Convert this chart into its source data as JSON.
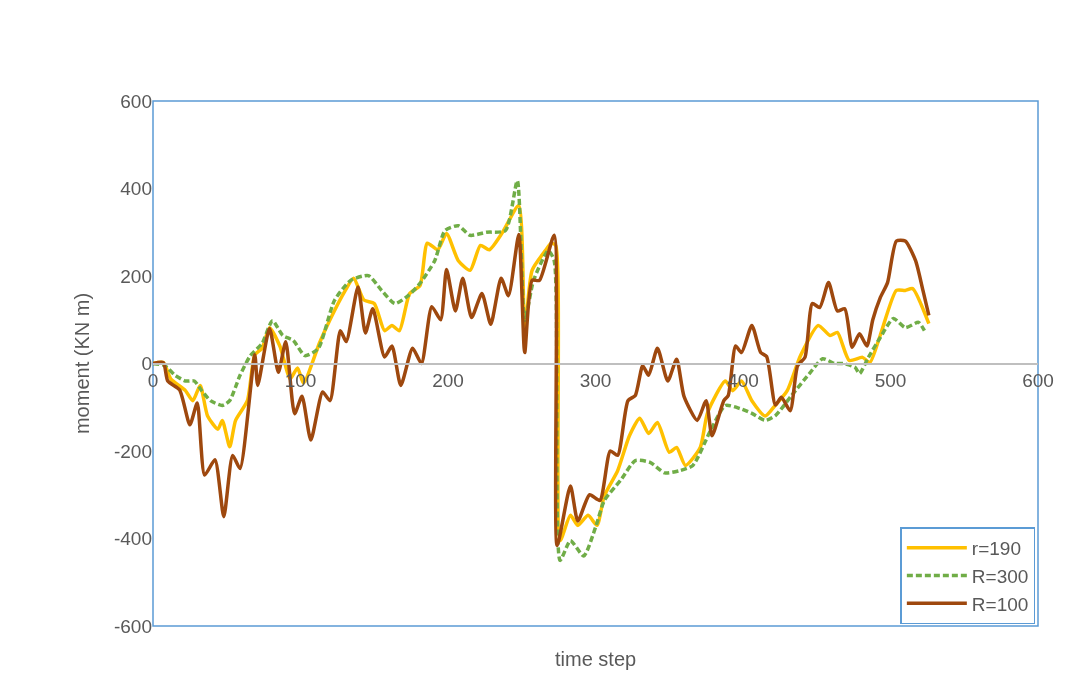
{
  "chart_data": {
    "type": "line",
    "xlabel": "time step",
    "ylabel": "moment (KN m)",
    "xlim": [
      0,
      600
    ],
    "xticks": [
      0,
      100,
      200,
      300,
      400,
      500,
      600
    ],
    "ylim": [
      -600,
      600
    ],
    "yticks": [
      -600,
      -400,
      -200,
      0,
      200,
      400,
      600
    ],
    "grid": false,
    "legend": "bottom right",
    "marker": "none",
    "series": [
      {
        "name": "r=190",
        "color": "#ffc000",
        "line_style": "solid",
        "x": [
          0,
          7,
          12,
          22,
          27,
          32,
          37,
          44,
          47,
          52,
          56,
          64,
          69,
          74,
          79,
          86,
          93,
          98,
          102,
          113,
          120,
          130,
          136,
          143,
          150,
          157,
          162,
          167,
          174,
          181,
          186,
          193,
          199,
          207,
          215,
          222,
          228,
          237,
          248,
          252,
          257,
          266,
          270,
          273,
          276,
          283,
          288,
          295,
          301,
          306,
          315,
          323,
          330,
          336,
          342,
          350,
          355,
          361,
          371,
          376,
          388,
          393,
          399,
          406,
          415,
          422,
          430,
          439,
          451,
          459,
          464,
          472,
          481,
          486,
          493,
          504,
          510,
          515,
          526
        ],
        "values": [
          0,
          2,
          -35,
          -62,
          -85,
          -50,
          -120,
          -150,
          -130,
          -190,
          -130,
          -85,
          20,
          35,
          82,
          40,
          -35,
          -10,
          -45,
          48,
          100,
          165,
          195,
          145,
          137,
          75,
          87,
          75,
          160,
          178,
          275,
          260,
          297,
          235,
          213,
          270,
          260,
          300,
          361,
          75,
          213,
          258,
          275,
          270,
          -405,
          -347,
          -370,
          -347,
          -370,
          -302,
          -245,
          -165,
          -125,
          -160,
          -135,
          -203,
          -192,
          -233,
          -192,
          -112,
          -40,
          -62,
          -40,
          -85,
          -120,
          -95,
          -62,
          18,
          87,
          64,
          71,
          7,
          14,
          2,
          64,
          167,
          167,
          171,
          91
        ]
      },
      {
        "name": "R=300",
        "color": "#70ad47",
        "line_style": "dashed",
        "x": [
          0,
          8,
          15,
          22,
          28,
          33,
          39,
          47,
          52,
          59,
          66,
          74,
          81,
          88,
          95,
          103,
          112,
          123,
          134,
          146,
          155,
          164,
          173,
          181,
          191,
          198,
          207,
          215,
          226,
          239,
          247,
          252,
          258,
          268,
          272,
          276,
          283,
          292,
          300,
          306,
          317,
          327,
          337,
          347,
          357,
          366,
          378,
          388,
          398,
          406,
          415,
          422,
          433,
          445,
          454,
          462,
          468,
          476,
          479,
          485,
          493,
          502,
          510,
          519,
          523
        ],
        "values": [
          0,
          -5,
          -27,
          -40,
          -40,
          -62,
          -85,
          -96,
          -85,
          -27,
          18,
          46,
          98,
          64,
          53,
          18,
          34,
          144,
          190,
          201,
          167,
          137,
          155,
          183,
          235,
          304,
          315,
          293,
          300,
          304,
          418,
          98,
          190,
          258,
          235,
          -450,
          -405,
          -440,
          -375,
          -313,
          -267,
          -222,
          -226,
          -250,
          -245,
          -233,
          -153,
          -96,
          -103,
          -114,
          -130,
          -119,
          -73,
          -23,
          11,
          0,
          0,
          -9,
          -23,
          14,
          59,
          103,
          82,
          94,
          75
        ]
      },
      {
        "name": "R=100",
        "color": "#9e480e",
        "line_style": "solid",
        "x": [
          0,
          7,
          10,
          18,
          25,
          30,
          35,
          42,
          48,
          54,
          59,
          69,
          71,
          79,
          85,
          90,
          96,
          101,
          107,
          115,
          120,
          127,
          131,
          139,
          144,
          149,
          157,
          162,
          168,
          176,
          182,
          189,
          195,
          199,
          205,
          210,
          216,
          223,
          229,
          236,
          241,
          248,
          252,
          257,
          262,
          272,
          274,
          283,
          288,
          296,
          303,
          310,
          315,
          322,
          327,
          332,
          336,
          342,
          349,
          355,
          360,
          369,
          375,
          379,
          387,
          390,
          395,
          399,
          406,
          412,
          416,
          422,
          426,
          432,
          437,
          442,
          447,
          452,
          458,
          464,
          469,
          474,
          479,
          484,
          488,
          493,
          498,
          504,
          510,
          517,
          522,
          526
        ],
        "values": [
          0,
          2,
          -40,
          -60,
          -140,
          -90,
          -255,
          -220,
          -350,
          -210,
          -240,
          20,
          -50,
          80,
          -20,
          50,
          -115,
          -75,
          -175,
          -65,
          -85,
          75,
          50,
          175,
          70,
          125,
          15,
          40,
          -50,
          35,
          0,
          130,
          100,
          215,
          120,
          195,
          105,
          160,
          90,
          195,
          155,
          295,
          25,
          190,
          190,
          293,
          -416,
          -280,
          -360,
          -300,
          -313,
          -200,
          -210,
          -85,
          -73,
          -5,
          -27,
          35,
          -40,
          10,
          -75,
          -130,
          -85,
          -165,
          -85,
          -73,
          40,
          25,
          87,
          25,
          16,
          -95,
          -77,
          -108,
          -5,
          14,
          137,
          128,
          185,
          120,
          125,
          37,
          68,
          40,
          100,
          150,
          185,
          280,
          280,
          235,
          167,
          110
        ]
      }
    ]
  }
}
